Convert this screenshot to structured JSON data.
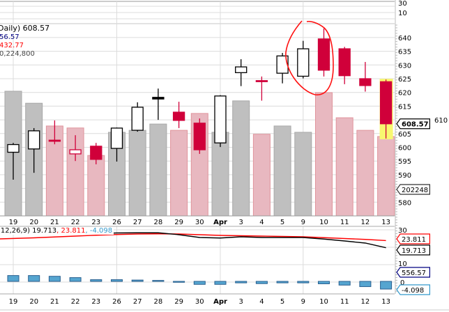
{
  "header": {
    "title_fragment": "Daily) 608.57",
    "line2": "56.57",
    "line3": "432.77",
    "line4": "0,224,800"
  },
  "macd_legend": {
    "params": "(12,26,9)",
    "macd": "19.713",
    "signal": "23.811",
    "histogram": "-4.098"
  },
  "value_labels": {
    "last_price": "608.57",
    "last_volume": "202248",
    "signal": "23.811",
    "macd": "19.713",
    "level": "556.57",
    "histogram": "-4.098"
  },
  "colors": {
    "up": "#000000",
    "down": "#d0003a",
    "volume_up": "#bfbfbf",
    "volume_down": "#e8b8c0",
    "macd_line": "#000000",
    "signal_line": "#ff0000",
    "histogram": "#55a5d0",
    "highlight": "#f8f870",
    "annotation": "#ff1010"
  },
  "chart_data": [
    {
      "type": "candlestick",
      "categories": [
        "19",
        "20",
        "21",
        "22",
        "23",
        "26",
        "27",
        "28",
        "29",
        "30",
        "Apr",
        "3",
        "4",
        "5",
        "9",
        "10",
        "11",
        "12",
        "13"
      ],
      "open": [
        598.2,
        599.4,
        602.6,
        597.6,
        600.4,
        599.6,
        606.2,
        618.2,
        612.8,
        608.8,
        601.6,
        627.2,
        624.3,
        627.0,
        625.9,
        639.5,
        635.9,
        625.0,
        623.9
      ],
      "high": [
        601.6,
        607.0,
        609.8,
        604.4,
        601.6,
        607.2,
        616.4,
        621.4,
        616.6,
        610.5,
        619.0,
        632.1,
        625.8,
        634.4,
        638.8,
        643.3,
        636.6,
        631.1,
        624.7
      ],
      "low": [
        588.2,
        590.7,
        601.1,
        595.0,
        593.8,
        594.8,
        605.7,
        610.0,
        607.0,
        597.6,
        600.1,
        622.3,
        617.0,
        623.3,
        625.1,
        625.8,
        623.0,
        620.3,
        603.2
      ],
      "close": [
        601.0,
        606.0,
        602.2,
        599.1,
        595.6,
        607.0,
        614.6,
        617.6,
        609.8,
        599.1,
        618.7,
        629.3,
        624.1,
        633.3,
        635.9,
        628.1,
        626.1,
        622.5,
        608.57
      ],
      "y_ticks": [
        "640",
        "635",
        "630",
        "625",
        "620",
        "615",
        "610",
        "605",
        "600",
        "595",
        "590",
        "580"
      ],
      "last_value": 608.57,
      "grid": true
    },
    {
      "type": "bar",
      "categories": [
        "19",
        "20",
        "21",
        "22",
        "23",
        "26",
        "27",
        "28",
        "29",
        "30",
        "Apr",
        "3",
        "4",
        "5",
        "9",
        "10",
        "11",
        "12",
        "13"
      ],
      "values": [
        317600,
        287000,
        229000,
        224000,
        154000,
        213000,
        218000,
        234000,
        218000,
        261000,
        213000,
        293000,
        208000,
        229000,
        213000,
        314000,
        250000,
        218000,
        202248
      ]
    },
    {
      "type": "line",
      "categories": [
        "19",
        "20",
        "21",
        "22",
        "23",
        "26",
        "27",
        "28",
        "29",
        "30",
        "Apr",
        "3",
        "4",
        "5",
        "9",
        "10",
        "11",
        "12",
        "13"
      ],
      "series": [
        {
          "name": "MACD",
          "values": [
            27.9,
            28.5,
            28.6,
            28.4,
            27.8,
            28.2,
            28.3,
            28.3,
            27.2,
            25.6,
            25.3,
            26.0,
            25.6,
            25.6,
            25.6,
            24.7,
            23.6,
            22.4,
            19.713
          ]
        },
        {
          "name": "Signal",
          "values": [
            24.8,
            25.4,
            25.9,
            26.4,
            26.9,
            27.3,
            27.6,
            27.7,
            27.6,
            27.2,
            26.8,
            26.6,
            26.4,
            26.2,
            26.0,
            25.5,
            25.0,
            24.5,
            23.811
          ]
        }
      ],
      "histogram": [
        3.1,
        3.1,
        2.7,
        2.0,
        0.9,
        0.9,
        0.7,
        0.5,
        -0.5,
        -1.6,
        -1.6,
        -0.8,
        -1.2,
        -0.8,
        -0.8,
        -1.3,
        -2.0,
        -2.8,
        -4.098
      ],
      "y_ticks": [
        "30",
        "10",
        "0"
      ]
    }
  ],
  "top_panel": {
    "y_ticks": [
      "30",
      "10"
    ]
  },
  "x_labels": [
    "19",
    "20",
    "21",
    "22",
    "23",
    "26",
    "27",
    "28",
    "29",
    "30",
    "Apr",
    "3",
    "4",
    "5",
    "9",
    "10",
    "11",
    "12",
    "13"
  ]
}
